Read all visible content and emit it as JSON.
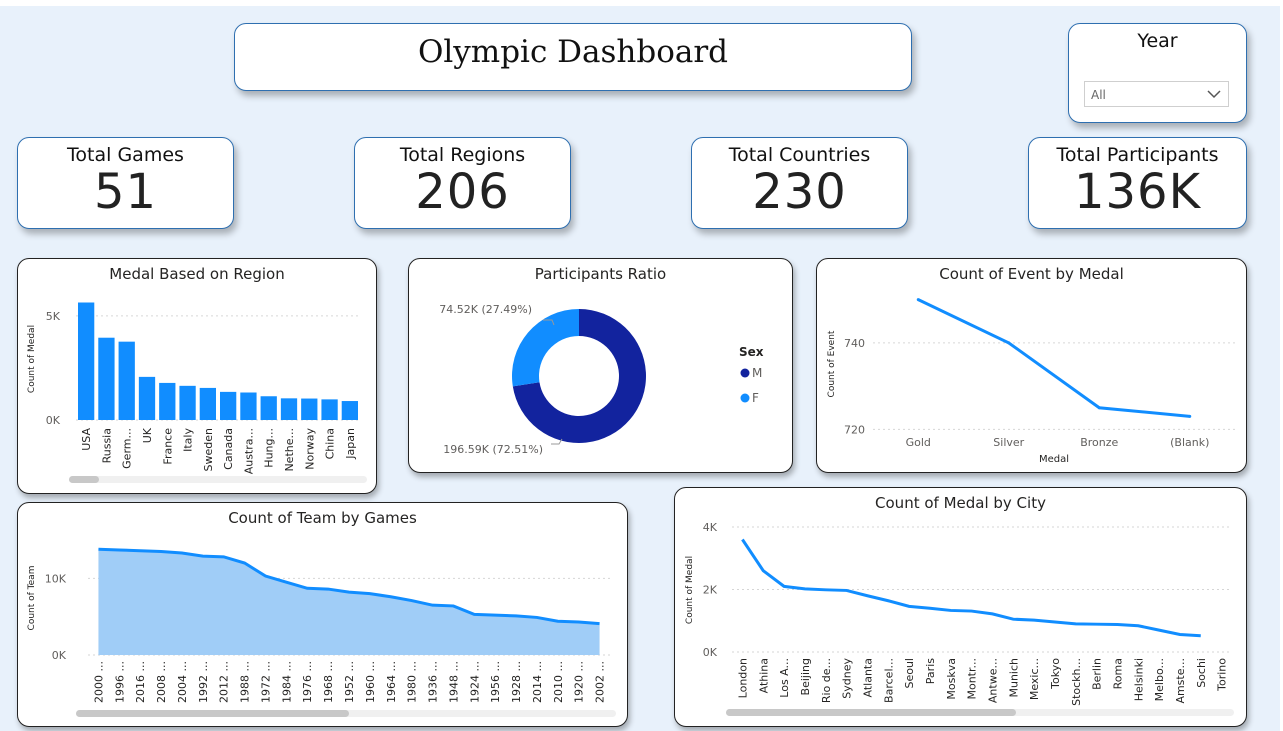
{
  "dashboard": {
    "title": "Olympic Dashboard"
  },
  "slicer": {
    "label": "Year",
    "value": "All"
  },
  "kpis": [
    {
      "label": "Total Games",
      "value": "51"
    },
    {
      "label": "Total Regions",
      "value": "206"
    },
    {
      "label": "Total Countries",
      "value": "230"
    },
    {
      "label": "Total Participants",
      "value": "136K"
    }
  ],
  "colors": {
    "bar": "#118dff",
    "dark_blue": "#12239e",
    "area_fill": "#a0cdf7",
    "line": "#118dff"
  },
  "chart_data": [
    {
      "id": "medal_region",
      "type": "bar",
      "title": "Medal Based on Region",
      "ylabel": "Count of Medal",
      "xlabel": "",
      "ylim": [
        0,
        6000
      ],
      "ytick_labels": [
        "0K",
        "5K"
      ],
      "yticks": [
        0,
        5000
      ],
      "categories": [
        "USA",
        "Russia",
        "Germ...",
        "UK",
        "France",
        "Italy",
        "Sweden",
        "Canada",
        "Austra...",
        "Hung...",
        "Nethe...",
        "Norway",
        "China",
        "Japan"
      ],
      "values": [
        5640,
        3950,
        3760,
        2070,
        1780,
        1640,
        1540,
        1350,
        1320,
        1140,
        1040,
        1030,
        990,
        910
      ]
    },
    {
      "id": "participants_ratio",
      "type": "pie",
      "title": "Participants Ratio",
      "legend_title": "Sex",
      "legend_position": "right",
      "slices": [
        {
          "name": "M",
          "value": 196594,
          "label": "196.59K (72.51%)",
          "color": "#12239e"
        },
        {
          "name": "F",
          "value": 74522,
          "label": "74.52K (27.49%)",
          "color": "#118dff"
        }
      ]
    },
    {
      "id": "event_by_medal",
      "type": "line",
      "title": "Count of Event by Medal",
      "xlabel": "Medal",
      "ylabel": "Count of Event",
      "ylim": [
        718,
        752
      ],
      "yticks": [
        720,
        740
      ],
      "ytick_labels": [
        "720",
        "740"
      ],
      "categories": [
        "Gold",
        "Silver",
        "Bronze",
        "(Blank)"
      ],
      "values": [
        750,
        740,
        725,
        723
      ]
    },
    {
      "id": "team_by_games",
      "type": "area",
      "title": "Count of Team by Games",
      "xlabel": "",
      "ylabel": "Count of Team",
      "ylim": [
        0,
        15000
      ],
      "yticks": [
        0,
        10000
      ],
      "ytick_labels": [
        "0K",
        "10K"
      ],
      "categories": [
        "2000 ...",
        "1996 ...",
        "2016 ...",
        "2008 ...",
        "2004 ...",
        "1992 ...",
        "2012 ...",
        "1988 ...",
        "1972 ...",
        "1984 ...",
        "1976 ...",
        "1968 ...",
        "1952 ...",
        "1960 ...",
        "1964 ...",
        "1980 ...",
        "1936 ...",
        "1948 ...",
        "1924 ...",
        "1956 ...",
        "1928 ...",
        "2014 ...",
        "2010 ...",
        "1920 ...",
        "2002 ..."
      ],
      "values": [
        13800,
        13700,
        13600,
        13500,
        13300,
        12900,
        12800,
        12000,
        10300,
        9500,
        8700,
        8600,
        8200,
        8000,
        7600,
        7100,
        6500,
        6400,
        5300,
        5200,
        5100,
        4900,
        4400,
        4300,
        4100
      ]
    },
    {
      "id": "medal_by_city",
      "type": "line",
      "title": "Count of Medal by City",
      "xlabel": "",
      "ylabel": "Count of Medal",
      "ylim": [
        0,
        4000
      ],
      "yticks": [
        0,
        2000,
        4000
      ],
      "ytick_labels": [
        "0K",
        "2K",
        "4K"
      ],
      "categories": [
        "London",
        "Athina",
        "Los A...",
        "Beijing",
        "Rio de...",
        "Sydney",
        "Atlanta",
        "Barcel...",
        "Seoul",
        "Paris",
        "Moskva",
        "Montr...",
        "Antwe...",
        "Munich",
        "Mexic...",
        "Tokyo",
        "Stockh...",
        "Berlin",
        "Roma",
        "Helsinki",
        "Melbo...",
        "Amste...",
        "Sochi",
        "Torino"
      ],
      "values": [
        3600,
        2600,
        2100,
        2020,
        1990,
        1970,
        1800,
        1640,
        1460,
        1400,
        1330,
        1310,
        1220,
        1050,
        1020,
        960,
        900,
        890,
        880,
        840,
        700,
        560,
        520,
        0
      ]
    }
  ]
}
